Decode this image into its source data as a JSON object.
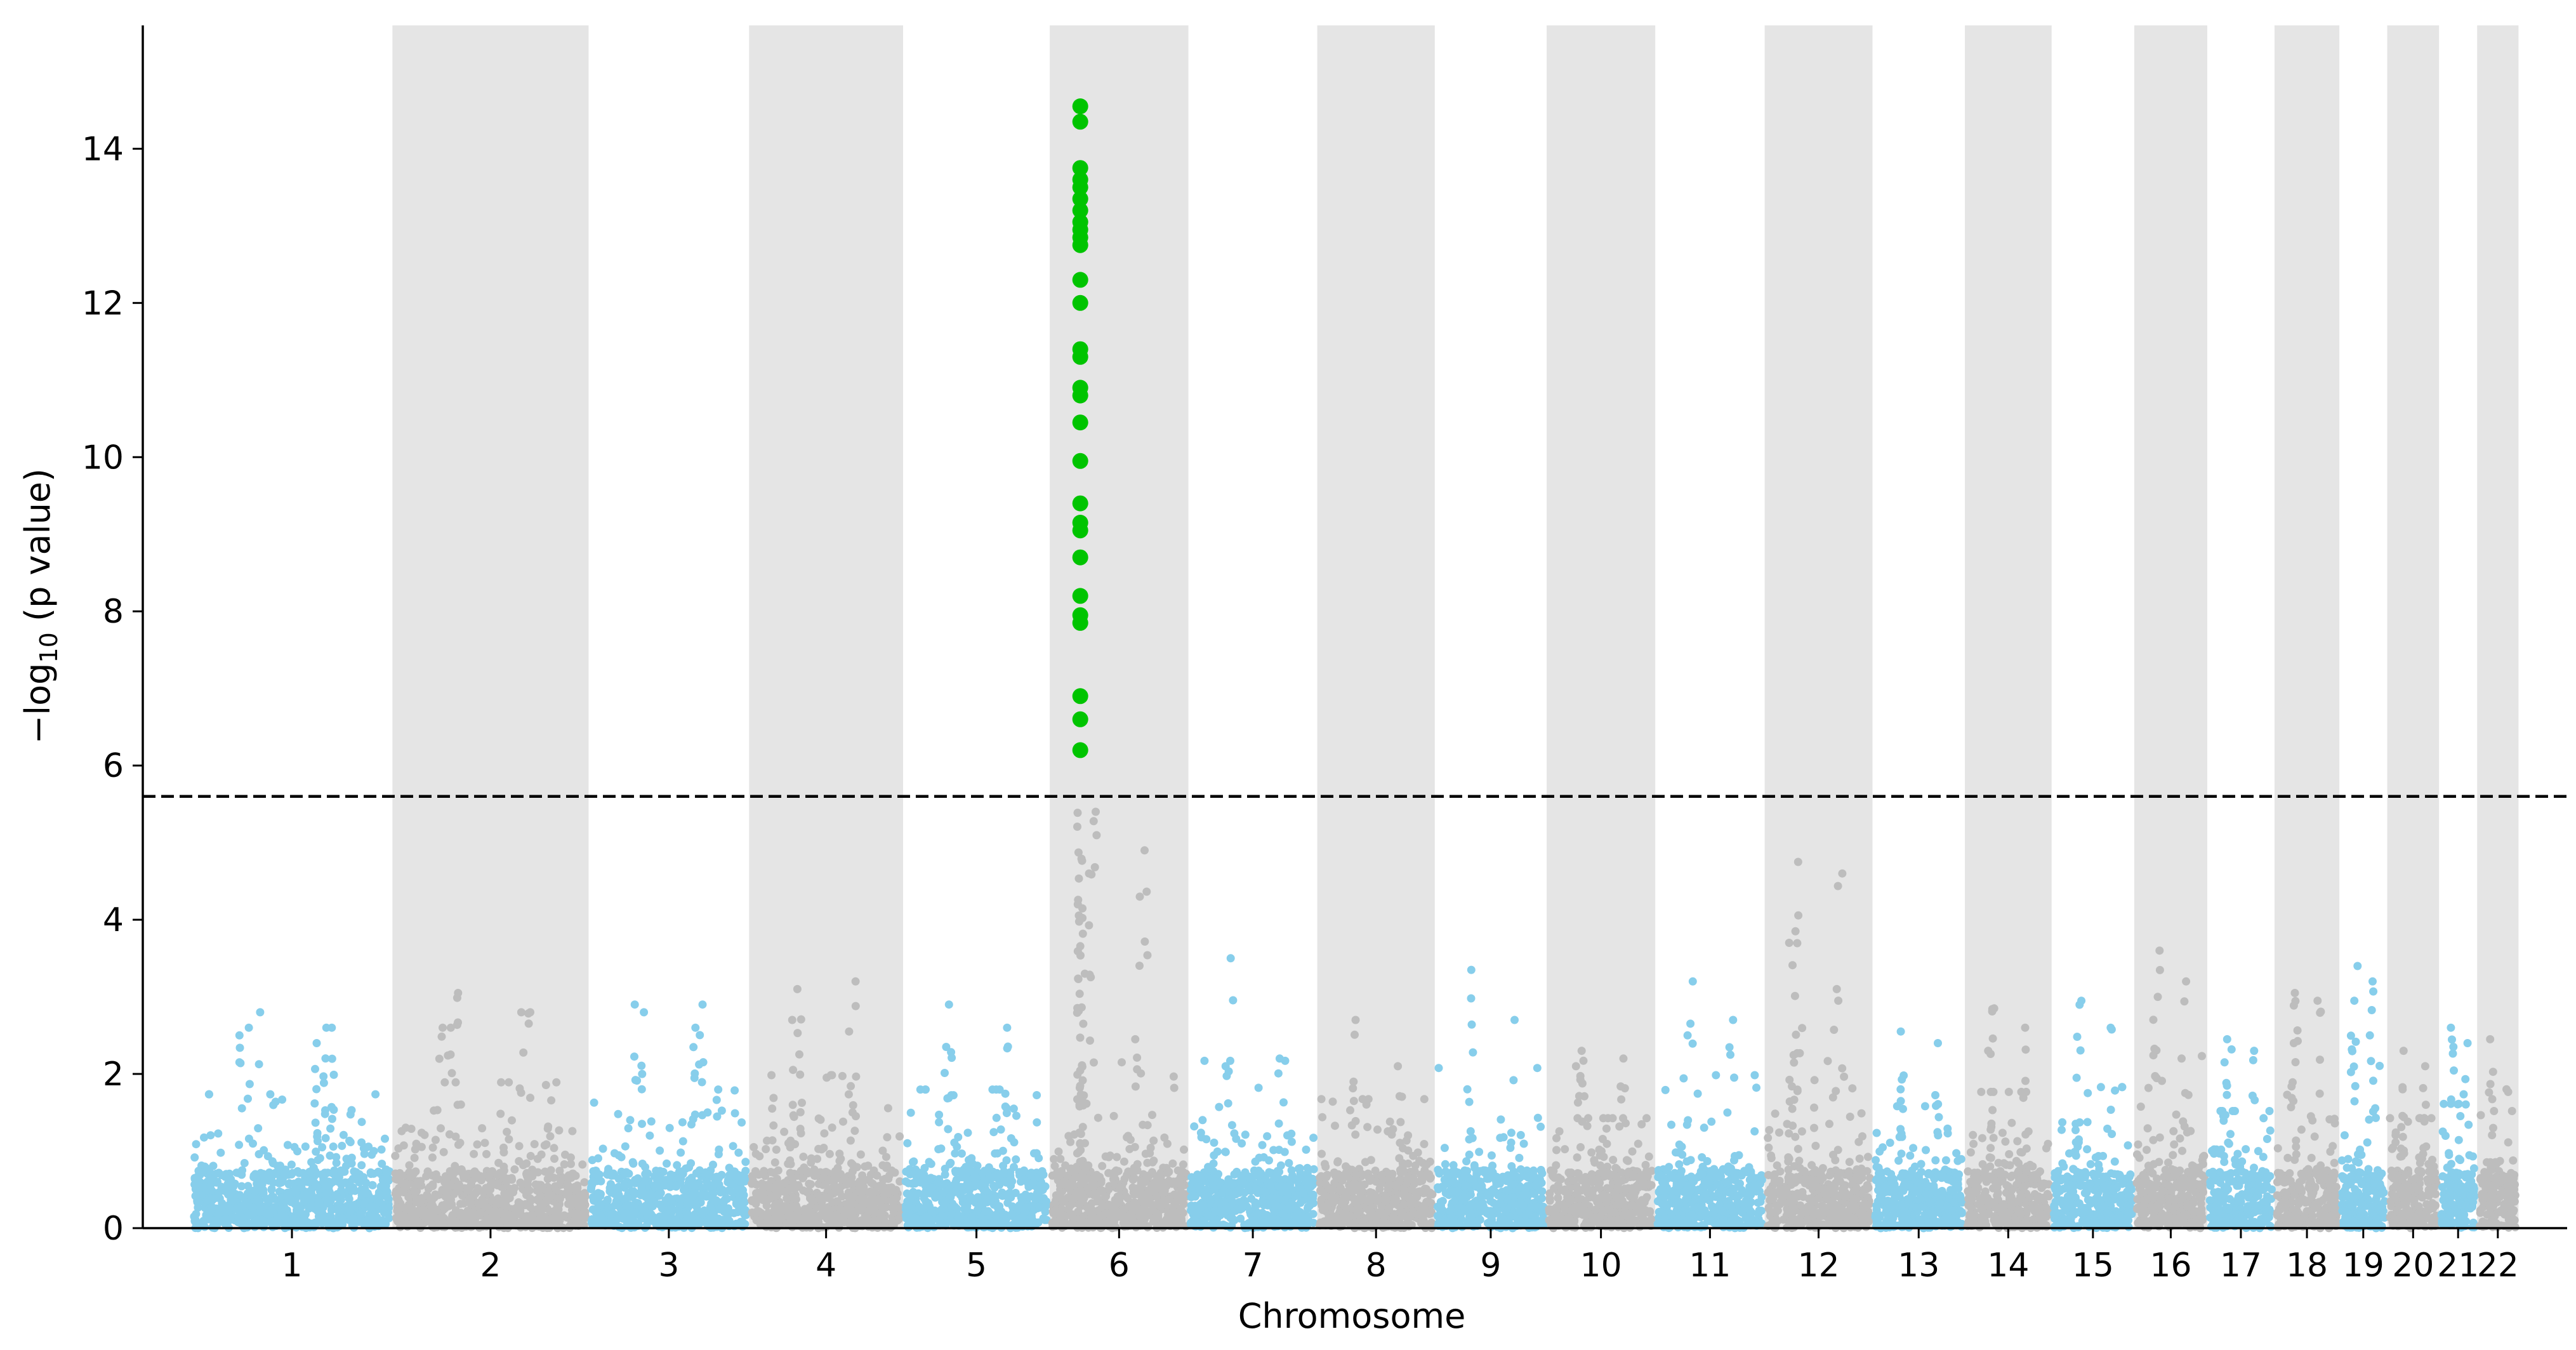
{
  "chart_data": {
    "type": "scatter",
    "subtype": "manhattan",
    "title": "",
    "xlabel": "Chromosome",
    "ylabel": "−log",
    "ylabel_subscript": "10",
    "ylabel_suffix": " (p value)",
    "ylim": [
      0,
      15.6
    ],
    "yticks": [
      0,
      2,
      4,
      6,
      8,
      10,
      12,
      14
    ],
    "significance_threshold": 5.6,
    "chromosomes": [
      {
        "label": "1",
        "start": 0,
        "length": 248,
        "max": 2.8,
        "peaks": [
          2.8,
          2.6,
          2.6,
          2.6,
          2.5,
          2.4
        ]
      },
      {
        "label": "2",
        "start": 248,
        "length": 242,
        "max": 3.05,
        "peaks": [
          3.05,
          2.8,
          2.6,
          2.8,
          2.6
        ]
      },
      {
        "label": "3",
        "start": 490,
        "length": 198,
        "max": 2.9,
        "peaks": [
          2.8,
          2.9,
          2.9,
          2.6
        ]
      },
      {
        "label": "4",
        "start": 688,
        "length": 190,
        "max": 3.2,
        "peaks": [
          3.1,
          3.2,
          2.7,
          2.55
        ]
      },
      {
        "label": "5",
        "start": 878,
        "length": 181,
        "max": 2.9,
        "peaks": [
          2.9,
          2.6,
          2.35
        ]
      },
      {
        "label": "6",
        "start": 1059,
        "length": 171,
        "max": 5.4,
        "peaks": [
          5.4,
          4.9,
          4.6,
          4.3,
          3.3,
          2.45
        ]
      },
      {
        "label": "7",
        "start": 1230,
        "length": 159,
        "max": 3.5,
        "peaks": [
          3.5,
          2.2,
          2.1
        ]
      },
      {
        "label": "8",
        "start": 1389,
        "length": 145,
        "max": 2.7,
        "peaks": [
          2.7,
          2.1,
          1.9
        ]
      },
      {
        "label": "9",
        "start": 1534,
        "length": 138,
        "max": 3.35,
        "peaks": [
          3.35,
          2.7,
          1.8
        ]
      },
      {
        "label": "10",
        "start": 1672,
        "length": 134,
        "max": 2.3,
        "peaks": [
          2.3,
          2.2,
          2.1
        ]
      },
      {
        "label": "11",
        "start": 1806,
        "length": 135,
        "max": 3.2,
        "peaks": [
          3.2,
          2.7,
          2.5
        ]
      },
      {
        "label": "12",
        "start": 1941,
        "length": 133,
        "max": 4.75,
        "peaks": [
          4.75,
          4.6,
          3.85,
          3.1,
          3.7
        ]
      },
      {
        "label": "13",
        "start": 2074,
        "length": 114,
        "max": 2.55,
        "peaks": [
          2.55,
          2.4,
          1.8
        ]
      },
      {
        "label": "14",
        "start": 2188,
        "length": 107,
        "max": 2.85,
        "peaks": [
          2.85,
          2.6,
          2.3
        ]
      },
      {
        "label": "15",
        "start": 2295,
        "length": 102,
        "max": 2.95,
        "peaks": [
          2.95,
          2.6,
          1.95
        ]
      },
      {
        "label": "16",
        "start": 2397,
        "length": 90,
        "max": 3.6,
        "peaks": [
          3.6,
          3.2,
          3.0,
          2.2
        ]
      },
      {
        "label": "17",
        "start": 2487,
        "length": 83,
        "max": 2.45,
        "peaks": [
          2.45,
          2.3,
          2.15
        ]
      },
      {
        "label": "18",
        "start": 2570,
        "length": 80,
        "max": 3.05,
        "peaks": [
          3.05,
          2.95,
          2.4
        ]
      },
      {
        "label": "19",
        "start": 2650,
        "length": 59,
        "max": 3.4,
        "peaks": [
          3.4,
          3.2,
          2.95,
          2.5
        ]
      },
      {
        "label": "20",
        "start": 2709,
        "length": 64,
        "max": 2.3,
        "peaks": [
          2.3,
          2.1,
          1.8
        ]
      },
      {
        "label": "21",
        "start": 2773,
        "length": 47,
        "max": 2.6,
        "peaks": [
          2.6,
          2.4
        ]
      },
      {
        "label": "22",
        "start": 2820,
        "length": 51,
        "max": 2.45,
        "peaks": [
          2.45,
          1.8
        ]
      }
    ],
    "genome_length": 2871,
    "significant_hits": {
      "chromosome": "6",
      "relative_position": 0.22,
      "values": [
        14.55,
        14.35,
        13.75,
        13.6,
        13.5,
        13.35,
        13.2,
        13.05,
        12.95,
        12.85,
        12.75,
        12.3,
        12.0,
        11.4,
        11.3,
        10.9,
        10.8,
        10.45,
        9.95,
        9.4,
        9.15,
        9.05,
        8.7,
        8.2,
        7.95,
        7.85,
        6.9,
        6.6,
        6.2
      ]
    },
    "colors": {
      "odd_points": "#87ceeb",
      "even_points": "#bdbdbd",
      "band": "#e5e5e5",
      "significant": "#00c400",
      "threshold_line": "#000000",
      "axis": "#000000"
    }
  }
}
